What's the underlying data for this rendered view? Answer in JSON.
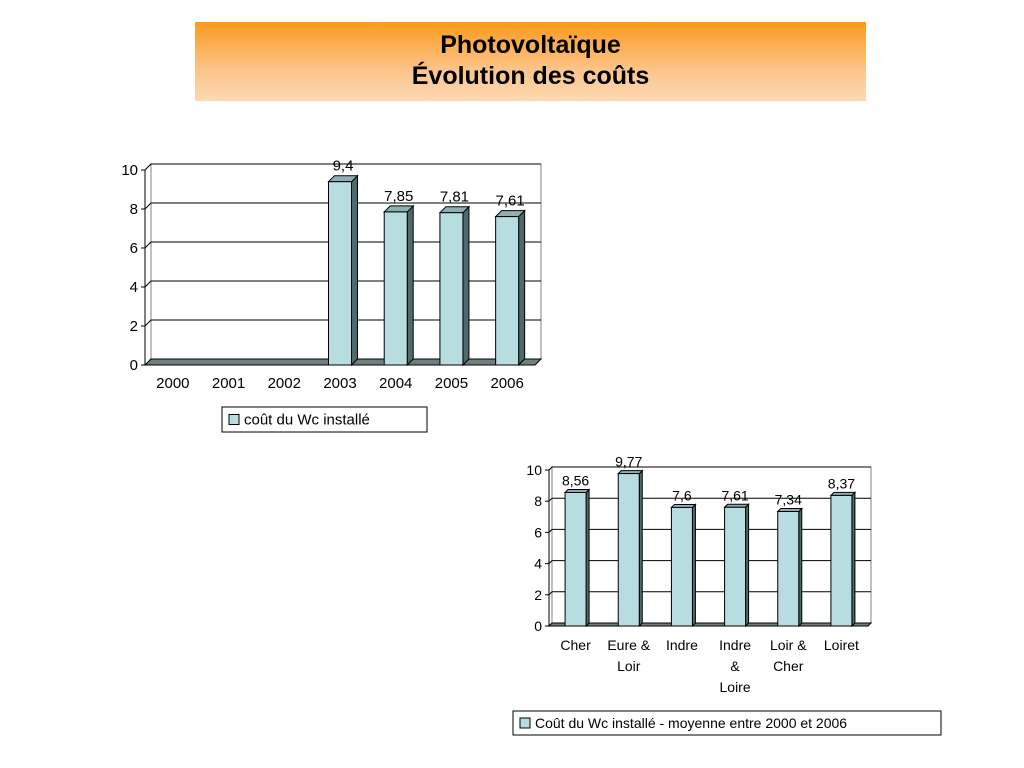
{
  "header": {
    "line1": "Photovoltaïque",
    "line2": "Évolution des coûts",
    "gradient_top": "#fb9a1c",
    "gradient_bottom": "#fdd9b3"
  },
  "chart_data": [
    {
      "type": "bar",
      "title": "",
      "xlabel": "",
      "ylabel": "",
      "categories": [
        "2000",
        "2001",
        "2002",
        "2003",
        "2004",
        "2005",
        "2006"
      ],
      "series": [
        {
          "name": "coût du Wc installé",
          "values": [
            0,
            0,
            0,
            9.4,
            7.85,
            7.81,
            7.61
          ],
          "labels": [
            "",
            "",
            "",
            "9,4",
            "7,85",
            "7,81",
            "7,61"
          ]
        }
      ],
      "ylim": [
        0,
        10
      ],
      "yticks": [
        "0",
        "2",
        "4",
        "6",
        "8",
        "10"
      ],
      "grid": true,
      "legend": "bottom",
      "bar_color": "#b8dde0",
      "bar_side_color": "#4f6a6c"
    },
    {
      "type": "bar",
      "title": "",
      "xlabel": "",
      "ylabel": "",
      "categories": [
        [
          "Cher"
        ],
        [
          "Eure &",
          "Loir"
        ],
        [
          "Indre"
        ],
        [
          "Indre",
          "&",
          "Loire"
        ],
        [
          "Loir &",
          "Cher"
        ],
        [
          "Loiret"
        ]
      ],
      "series": [
        {
          "name": "Coût du Wc installé - moyenne entre 2000 et 2006",
          "values": [
            8.56,
            9.77,
            7.6,
            7.61,
            7.34,
            8.37
          ],
          "labels": [
            "8,56",
            "9,77",
            "7,6",
            "7,61",
            "7,34",
            "8,37"
          ]
        }
      ],
      "ylim": [
        0,
        10
      ],
      "yticks": [
        "0",
        "2",
        "4",
        "6",
        "8",
        "10"
      ],
      "grid": true,
      "legend": "bottom",
      "bar_color": "#b8dde0",
      "bar_side_color": "#4f6a6c"
    }
  ]
}
